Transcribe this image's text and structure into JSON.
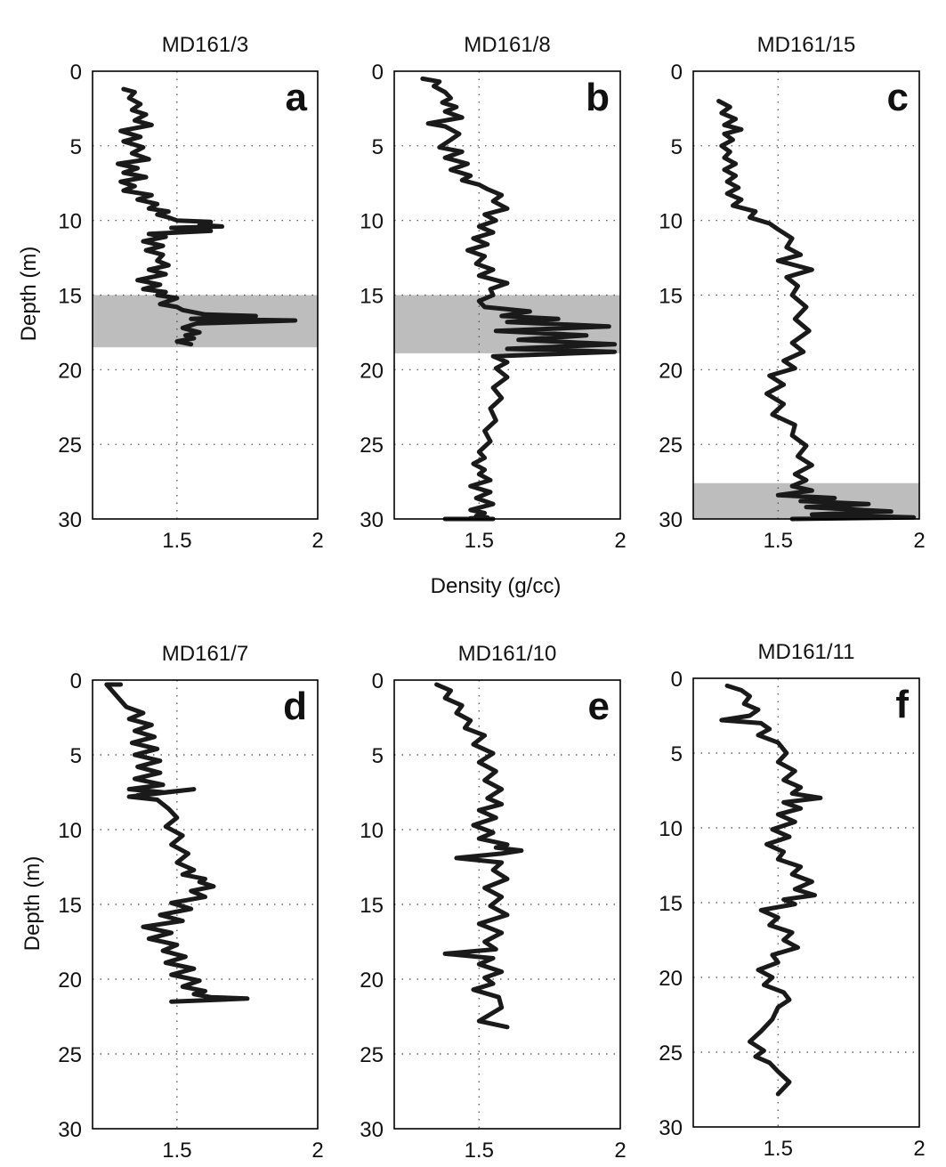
{
  "figure": {
    "xlabel_shared": "Density (g/cc)",
    "ylabel_top": "Depth (m)",
    "ylabel_bottom": "Depth (m)"
  },
  "chart_data": [
    {
      "type": "line",
      "title": "MD161/3",
      "letter": "a",
      "xlabel": "",
      "ylabel": "Depth (m)",
      "xlim": [
        1.2,
        2.0
      ],
      "ylim": [
        30,
        0
      ],
      "xticks": [
        1.5,
        2
      ],
      "xtick_labels": [
        "1.5",
        "2"
      ],
      "yticks": [
        0,
        5,
        10,
        15,
        20,
        25,
        30
      ],
      "ytick_labels": [
        "0",
        "5",
        "10",
        "15",
        "20",
        "25",
        "30"
      ],
      "shaded_depth": [
        15.0,
        18.5
      ],
      "series": [
        {
          "x": [
            1.31,
            1.35,
            1.33,
            1.37,
            1.34,
            1.39,
            1.35,
            1.41,
            1.3,
            1.37,
            1.31,
            1.38,
            1.34,
            1.4,
            1.29,
            1.36,
            1.31,
            1.39,
            1.3,
            1.35,
            1.31,
            1.41,
            1.36,
            1.43,
            1.4,
            1.47,
            1.43,
            1.47,
            1.5,
            1.62,
            1.58,
            1.66,
            1.48,
            1.62,
            1.4,
            1.46,
            1.38,
            1.45,
            1.39,
            1.45,
            1.43,
            1.47,
            1.4,
            1.46,
            1.36,
            1.44,
            1.38,
            1.46,
            1.43,
            1.5,
            1.44,
            1.5,
            1.52,
            1.6,
            1.78,
            1.55,
            1.92,
            1.57,
            1.52,
            1.58,
            1.53,
            1.56,
            1.5,
            1.55
          ],
          "y": [
            1.2,
            1.4,
            1.8,
            2.2,
            2.6,
            2.9,
            3.3,
            3.6,
            4.0,
            4.4,
            4.7,
            5.1,
            5.5,
            5.9,
            6.2,
            6.5,
            6.8,
            7.1,
            7.4,
            7.7,
            8.0,
            8.3,
            8.6,
            8.9,
            9.2,
            9.4,
            9.6,
            9.8,
            10.0,
            10.1,
            10.3,
            10.4,
            10.5,
            10.7,
            10.9,
            11.1,
            11.4,
            11.7,
            12.0,
            12.3,
            12.7,
            13.0,
            13.3,
            13.6,
            14.0,
            14.3,
            14.6,
            14.8,
            15.0,
            15.2,
            15.6,
            15.8,
            16.0,
            16.3,
            16.4,
            16.6,
            16.7,
            16.9,
            17.2,
            17.5,
            17.7,
            17.9,
            18.1,
            18.3
          ]
        }
      ]
    },
    {
      "type": "line",
      "title": "MD161/8",
      "letter": "b",
      "xlabel": "Density (g/cc)",
      "ylabel": "",
      "xlim": [
        1.2,
        2.0
      ],
      "ylim": [
        30,
        0
      ],
      "xticks": [
        1.5,
        2
      ],
      "xtick_labels": [
        "1.5",
        "2"
      ],
      "yticks": [
        0,
        5,
        10,
        15,
        20,
        25,
        30
      ],
      "ytick_labels": [
        "0",
        "5",
        "10",
        "15",
        "20",
        "25",
        "30"
      ],
      "shaded_depth": [
        15.0,
        18.9
      ],
      "series": [
        {
          "x": [
            1.3,
            1.36,
            1.34,
            1.38,
            1.4,
            1.37,
            1.42,
            1.38,
            1.44,
            1.32,
            1.38,
            1.43,
            1.4,
            1.36,
            1.44,
            1.38,
            1.46,
            1.4,
            1.47,
            1.44,
            1.5,
            1.53,
            1.58,
            1.55,
            1.6,
            1.52,
            1.56,
            1.5,
            1.55,
            1.48,
            1.53,
            1.46,
            1.52,
            1.49,
            1.55,
            1.5,
            1.6,
            1.54,
            1.55,
            1.5,
            1.52,
            1.68,
            1.58,
            1.78,
            1.6,
            1.96,
            1.56,
            1.88,
            1.64,
            1.98,
            1.6,
            1.98,
            1.55,
            1.6,
            1.56,
            1.6,
            1.55,
            1.58,
            1.54,
            1.56,
            1.52,
            1.54,
            1.5,
            1.52,
            1.48,
            1.52,
            1.5,
            1.54,
            1.47,
            1.54,
            1.49,
            1.55,
            1.47,
            1.52,
            1.49,
            1.53,
            1.47,
            1.55,
            1.38,
            1.55,
            1.5
          ],
          "y": [
            0.5,
            0.7,
            1.0,
            1.4,
            1.8,
            2.1,
            2.4,
            2.7,
            3.1,
            3.5,
            3.7,
            4.2,
            4.6,
            5.1,
            5.4,
            5.8,
            6.2,
            6.6,
            7.0,
            7.3,
            7.6,
            7.9,
            8.3,
            8.7,
            9.2,
            9.6,
            10.0,
            10.4,
            10.8,
            11.2,
            11.6,
            12.0,
            12.4,
            12.9,
            13.3,
            13.7,
            14.2,
            14.6,
            15.0,
            15.4,
            15.8,
            16.1,
            16.4,
            16.6,
            16.8,
            17.1,
            17.4,
            17.7,
            18.0,
            18.3,
            18.6,
            18.8,
            19.1,
            19.5,
            19.9,
            20.5,
            21.2,
            21.9,
            22.6,
            23.4,
            24.1,
            24.8,
            25.5,
            25.9,
            26.3,
            26.7,
            27.0,
            27.4,
            27.8,
            28.2,
            28.6,
            29.0,
            29.4,
            29.6,
            29.8,
            29.9,
            29.95,
            30.0,
            30.0,
            30.0,
            30.0
          ]
        }
      ]
    },
    {
      "type": "line",
      "title": "MD161/15",
      "letter": "c",
      "xlabel": "",
      "ylabel": "",
      "xlim": [
        1.2,
        2.0
      ],
      "ylim": [
        30,
        0
      ],
      "xticks": [
        1.5,
        2
      ],
      "xtick_labels": [
        "1.5",
        "2"
      ],
      "yticks": [
        0,
        5,
        10,
        15,
        20,
        25,
        30
      ],
      "ytick_labels": [
        "0",
        "5",
        "10",
        "15",
        "20",
        "25",
        "30"
      ],
      "shaded_depth": [
        27.6,
        30.0
      ],
      "series": [
        {
          "x": [
            1.29,
            1.33,
            1.3,
            1.35,
            1.31,
            1.37,
            1.31,
            1.34,
            1.3,
            1.33,
            1.31,
            1.35,
            1.31,
            1.35,
            1.32,
            1.36,
            1.32,
            1.37,
            1.34,
            1.42,
            1.4,
            1.47,
            1.5,
            1.55,
            1.53,
            1.58,
            1.5,
            1.62,
            1.53,
            1.57,
            1.55,
            1.6,
            1.56,
            1.61,
            1.55,
            1.59,
            1.52,
            1.56,
            1.47,
            1.52,
            1.46,
            1.52,
            1.48,
            1.56,
            1.55,
            1.6,
            1.57,
            1.62,
            1.56,
            1.6,
            1.55,
            1.62,
            1.5,
            1.7,
            1.58,
            1.82,
            1.6,
            1.9,
            1.62,
            1.98,
            1.55
          ],
          "y": [
            2.0,
            2.4,
            2.8,
            3.2,
            3.6,
            3.9,
            4.2,
            4.6,
            5.0,
            5.4,
            5.8,
            6.2,
            6.6,
            7.0,
            7.4,
            7.8,
            8.2,
            8.6,
            9.0,
            9.4,
            9.8,
            10.2,
            10.6,
            11.2,
            11.8,
            12.3,
            12.7,
            13.3,
            13.8,
            14.4,
            15.0,
            15.8,
            16.6,
            17.4,
            18.2,
            18.8,
            19.4,
            19.9,
            20.4,
            21.0,
            21.6,
            22.3,
            23.0,
            23.7,
            24.4,
            25.1,
            25.8,
            26.4,
            27.0,
            27.4,
            27.8,
            28.1,
            28.4,
            28.6,
            28.8,
            29.0,
            29.2,
            29.5,
            29.7,
            29.9,
            30.0
          ]
        }
      ]
    },
    {
      "type": "line",
      "title": "MD161/7",
      "letter": "d",
      "xlabel": "",
      "ylabel": "Depth (m)",
      "xlim": [
        1.2,
        2.0
      ],
      "ylim": [
        30,
        0
      ],
      "xticks": [
        1.5,
        2
      ],
      "xtick_labels": [
        "1.5",
        "2"
      ],
      "yticks": [
        0,
        5,
        10,
        15,
        20,
        25,
        30
      ],
      "ytick_labels": [
        "0",
        "5",
        "10",
        "15",
        "20",
        "25",
        "30"
      ],
      "shaded_depth": null,
      "series": [
        {
          "x": [
            1.3,
            1.25,
            1.32,
            1.38,
            1.33,
            1.41,
            1.35,
            1.42,
            1.34,
            1.43,
            1.35,
            1.44,
            1.36,
            1.44,
            1.35,
            1.45,
            1.33,
            1.45,
            1.36,
            1.56,
            1.33,
            1.43,
            1.47,
            1.5,
            1.46,
            1.52,
            1.48,
            1.54,
            1.5,
            1.56,
            1.52,
            1.6,
            1.58,
            1.63,
            1.55,
            1.6,
            1.48,
            1.55,
            1.44,
            1.52,
            1.38,
            1.48,
            1.4,
            1.5,
            1.45,
            1.53,
            1.46,
            1.56,
            1.48,
            1.58,
            1.52,
            1.6,
            1.56,
            1.62,
            1.75,
            1.48
          ],
          "y": [
            0.3,
            0.3,
            1.8,
            2.2,
            2.6,
            3.0,
            3.4,
            3.8,
            4.2,
            4.6,
            5.0,
            5.4,
            5.8,
            6.2,
            6.6,
            7.0,
            7.3,
            7.5,
            7.7,
            7.3,
            7.8,
            8.0,
            8.6,
            9.2,
            9.8,
            10.4,
            11.0,
            11.6,
            12.2,
            12.7,
            13.0,
            13.3,
            13.5,
            13.8,
            14.1,
            14.5,
            14.9,
            15.3,
            15.7,
            16.1,
            16.5,
            16.9,
            17.3,
            17.7,
            18.1,
            18.5,
            18.9,
            19.3,
            19.7,
            20.1,
            20.5,
            20.8,
            21.0,
            21.2,
            21.3,
            21.5
          ]
        }
      ]
    },
    {
      "type": "line",
      "title": "MD161/10",
      "letter": "e",
      "xlabel": "",
      "ylabel": "",
      "xlim": [
        1.2,
        2.0
      ],
      "ylim": [
        30,
        0
      ],
      "xticks": [
        1.5,
        2
      ],
      "xtick_labels": [
        "1.5",
        "2"
      ],
      "yticks": [
        0,
        5,
        10,
        15,
        20,
        25,
        30
      ],
      "ytick_labels": [
        "0",
        "5",
        "10",
        "15",
        "20",
        "25",
        "30"
      ],
      "shaded_depth": null,
      "series": [
        {
          "x": [
            1.35,
            1.4,
            1.38,
            1.44,
            1.42,
            1.47,
            1.45,
            1.52,
            1.48,
            1.55,
            1.5,
            1.56,
            1.52,
            1.58,
            1.53,
            1.58,
            1.5,
            1.56,
            1.48,
            1.55,
            1.5,
            1.6,
            1.56,
            1.65,
            1.58,
            1.42,
            1.58,
            1.55,
            1.6,
            1.52,
            1.58,
            1.54,
            1.6,
            1.5,
            1.58,
            1.52,
            1.56,
            1.38,
            1.55,
            1.5,
            1.58,
            1.52,
            1.55,
            1.48,
            1.57,
            1.58,
            1.5,
            1.6
          ],
          "y": [
            0.3,
            0.7,
            1.2,
            1.7,
            2.2,
            2.7,
            3.2,
            3.7,
            4.3,
            4.9,
            5.5,
            6.1,
            6.7,
            7.3,
            7.9,
            8.3,
            8.7,
            9.2,
            9.7,
            10.2,
            10.6,
            11.0,
            11.2,
            11.4,
            11.6,
            11.9,
            12.2,
            12.7,
            13.3,
            13.9,
            14.5,
            15.1,
            15.7,
            16.3,
            16.9,
            17.5,
            18.0,
            18.3,
            18.6,
            19.0,
            19.5,
            19.9,
            20.3,
            20.7,
            21.2,
            21.9,
            22.8,
            23.2
          ]
        }
      ]
    },
    {
      "type": "line",
      "title": "MD161/11",
      "letter": "f",
      "xlabel": "",
      "ylabel": "",
      "xlim": [
        1.2,
        2.0
      ],
      "ylim": [
        30,
        0
      ],
      "xticks": [
        1.5,
        2
      ],
      "xtick_labels": [
        "1.5",
        "2"
      ],
      "yticks": [
        0,
        5,
        10,
        15,
        20,
        25,
        30
      ],
      "ytick_labels": [
        "0",
        "5",
        "10",
        "15",
        "20",
        "25",
        "30"
      ],
      "shaded_depth": null,
      "series": [
        {
          "x": [
            1.32,
            1.37,
            1.4,
            1.38,
            1.43,
            1.4,
            1.3,
            1.44,
            1.47,
            1.43,
            1.5,
            1.53,
            1.5,
            1.56,
            1.52,
            1.58,
            1.55,
            1.65,
            1.52,
            1.58,
            1.5,
            1.56,
            1.48,
            1.54,
            1.46,
            1.52,
            1.5,
            1.58,
            1.55,
            1.62,
            1.56,
            1.63,
            1.52,
            1.56,
            1.44,
            1.5,
            1.47,
            1.55,
            1.52,
            1.57,
            1.48,
            1.5,
            1.43,
            1.48,
            1.45,
            1.52,
            1.54,
            1.5,
            1.48,
            1.44,
            1.4,
            1.45,
            1.42,
            1.47,
            1.5,
            1.54,
            1.5
          ],
          "y": [
            0.5,
            0.8,
            1.2,
            1.7,
            2.1,
            2.5,
            2.8,
            3.0,
            3.4,
            3.8,
            4.3,
            5.0,
            5.6,
            6.2,
            6.8,
            7.3,
            7.7,
            8.0,
            8.3,
            8.7,
            9.1,
            9.6,
            10.1,
            10.6,
            11.1,
            11.6,
            12.1,
            12.6,
            13.1,
            13.6,
            14.1,
            14.5,
            14.8,
            15.1,
            15.5,
            16.0,
            16.5,
            17.0,
            17.5,
            18.0,
            18.5,
            19.0,
            19.5,
            20.0,
            20.5,
            21.0,
            21.5,
            22.0,
            22.8,
            23.6,
            24.3,
            24.9,
            25.3,
            25.7,
            26.3,
            27.0,
            27.8
          ]
        }
      ]
    }
  ]
}
